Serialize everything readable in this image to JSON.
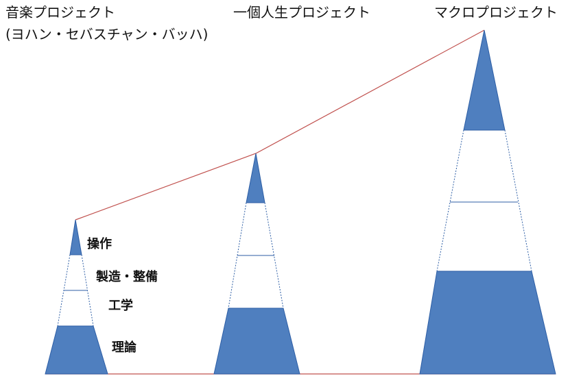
{
  "titles": {
    "music_project": "音楽プロジェクト",
    "music_project_sub": "(ヨハン・セバスチャン・バッハ)",
    "personal_life_project": "一個人生プロジェクト",
    "macro_project": "マクロプロジェクト"
  },
  "layers": {
    "operation": "操作",
    "manufacturing": "製造・整備",
    "engineering": "工学",
    "theory": "理論"
  },
  "colors": {
    "fill": "#4f7fbf",
    "outline": "#2d5ea5",
    "connector": "#c0504d",
    "background": "#ffffff"
  }
}
